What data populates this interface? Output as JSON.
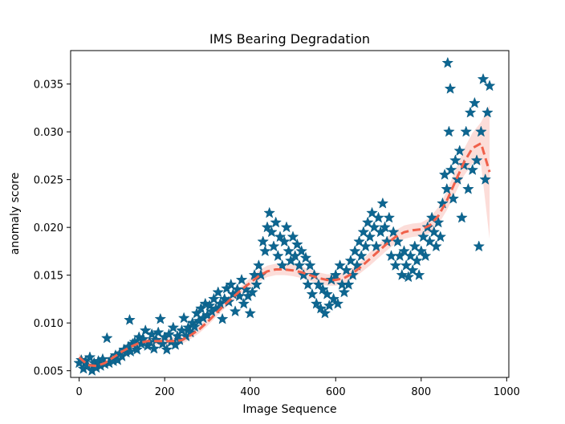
{
  "chart_data": {
    "type": "scatter",
    "title": "IMS Bearing Degradation",
    "xlabel": "Image Sequence",
    "ylabel": "anomaly score",
    "xlim": [
      -20,
      1005
    ],
    "ylim": [
      0.0043,
      0.0385
    ],
    "grid": false,
    "legend": "none",
    "x_ticks": [
      0,
      200,
      400,
      600,
      800,
      1000
    ],
    "x_tick_labels": [
      "0",
      "200",
      "400",
      "600",
      "800",
      "1000"
    ],
    "y_ticks": [
      0.005,
      0.01,
      0.015,
      0.02,
      0.025,
      0.03,
      0.035
    ],
    "y_tick_labels": [
      "0.005",
      "0.010",
      "0.015",
      "0.020",
      "0.025",
      "0.030",
      "0.035"
    ],
    "colors": {
      "points": "#0d6691",
      "trend": "#f0604a",
      "band": "#fbd2cc"
    },
    "marker": "star",
    "series": [
      {
        "kind": "scatter",
        "points": [
          [
            0,
            0.0058
          ],
          [
            5,
            0.0061
          ],
          [
            10,
            0.0052
          ],
          [
            15,
            0.006
          ],
          [
            20,
            0.0055
          ],
          [
            25,
            0.0064
          ],
          [
            30,
            0.005
          ],
          [
            35,
            0.0058
          ],
          [
            40,
            0.0053
          ],
          [
            45,
            0.006
          ],
          [
            50,
            0.0055
          ],
          [
            55,
            0.0062
          ],
          [
            60,
            0.0057
          ],
          [
            65,
            0.0084
          ],
          [
            70,
            0.0058
          ],
          [
            75,
            0.0062
          ],
          [
            80,
            0.006
          ],
          [
            85,
            0.0066
          ],
          [
            90,
            0.0061
          ],
          [
            95,
            0.0068
          ],
          [
            100,
            0.0065
          ],
          [
            105,
            0.0072
          ],
          [
            110,
            0.0069
          ],
          [
            115,
            0.0075
          ],
          [
            118,
            0.0103
          ],
          [
            120,
            0.007
          ],
          [
            125,
            0.0078
          ],
          [
            130,
            0.008
          ],
          [
            135,
            0.0072
          ],
          [
            140,
            0.0085
          ],
          [
            145,
            0.0078
          ],
          [
            150,
            0.0083
          ],
          [
            155,
            0.0092
          ],
          [
            160,
            0.0076
          ],
          [
            165,
            0.008
          ],
          [
            170,
            0.0088
          ],
          [
            175,
            0.0073
          ],
          [
            180,
            0.0082
          ],
          [
            185,
            0.009
          ],
          [
            190,
            0.0104
          ],
          [
            195,
            0.0078
          ],
          [
            200,
            0.0085
          ],
          [
            205,
            0.0072
          ],
          [
            210,
            0.0088
          ],
          [
            215,
            0.008
          ],
          [
            220,
            0.0095
          ],
          [
            225,
            0.0077
          ],
          [
            230,
            0.0086
          ],
          [
            235,
            0.0082
          ],
          [
            240,
            0.0092
          ],
          [
            245,
            0.0105
          ],
          [
            250,
            0.0086
          ],
          [
            255,
            0.0095
          ],
          [
            260,
            0.009
          ],
          [
            265,
            0.01
          ],
          [
            270,
            0.0096
          ],
          [
            275,
            0.011
          ],
          [
            280,
            0.0102
          ],
          [
            285,
            0.0115
          ],
          [
            290,
            0.0105
          ],
          [
            295,
            0.012
          ],
          [
            300,
            0.0108
          ],
          [
            305,
            0.0118
          ],
          [
            310,
            0.0112
          ],
          [
            315,
            0.0125
          ],
          [
            320,
            0.0115
          ],
          [
            325,
            0.0132
          ],
          [
            330,
            0.012
          ],
          [
            335,
            0.0104
          ],
          [
            340,
            0.0125
          ],
          [
            345,
            0.0136
          ],
          [
            350,
            0.0122
          ],
          [
            355,
            0.014
          ],
          [
            360,
            0.013
          ],
          [
            365,
            0.0112
          ],
          [
            370,
            0.0135
          ],
          [
            375,
            0.0128
          ],
          [
            380,
            0.0145
          ],
          [
            385,
            0.012
          ],
          [
            390,
            0.0135
          ],
          [
            395,
            0.0128
          ],
          [
            400,
            0.011
          ],
          [
            405,
            0.0132
          ],
          [
            410,
            0.015
          ],
          [
            415,
            0.014
          ],
          [
            420,
            0.016
          ],
          [
            425,
            0.015
          ],
          [
            430,
            0.0185
          ],
          [
            435,
            0.0175
          ],
          [
            440,
            0.02
          ],
          [
            445,
            0.0215
          ],
          [
            450,
            0.0195
          ],
          [
            455,
            0.018
          ],
          [
            460,
            0.0205
          ],
          [
            465,
            0.017
          ],
          [
            470,
            0.019
          ],
          [
            475,
            0.016
          ],
          [
            480,
            0.0185
          ],
          [
            485,
            0.02
          ],
          [
            490,
            0.0175
          ],
          [
            495,
            0.0165
          ],
          [
            500,
            0.019
          ],
          [
            505,
            0.017
          ],
          [
            510,
            0.0182
          ],
          [
            515,
            0.016
          ],
          [
            520,
            0.0175
          ],
          [
            525,
            0.015
          ],
          [
            530,
            0.0168
          ],
          [
            535,
            0.014
          ],
          [
            540,
            0.016
          ],
          [
            545,
            0.013
          ],
          [
            550,
            0.015
          ],
          [
            555,
            0.012
          ],
          [
            560,
            0.014
          ],
          [
            565,
            0.0115
          ],
          [
            570,
            0.0135
          ],
          [
            575,
            0.011
          ],
          [
            580,
            0.013
          ],
          [
            585,
            0.0118
          ],
          [
            590,
            0.0145
          ],
          [
            595,
            0.0125
          ],
          [
            600,
            0.015
          ],
          [
            605,
            0.012
          ],
          [
            610,
            0.016
          ],
          [
            615,
            0.014
          ],
          [
            620,
            0.0132
          ],
          [
            625,
            0.0155
          ],
          [
            630,
            0.014
          ],
          [
            635,
            0.0165
          ],
          [
            640,
            0.015
          ],
          [
            645,
            0.0175
          ],
          [
            650,
            0.016
          ],
          [
            655,
            0.0185
          ],
          [
            660,
            0.017
          ],
          [
            665,
            0.0195
          ],
          [
            670,
            0.018
          ],
          [
            675,
            0.0205
          ],
          [
            680,
            0.019
          ],
          [
            685,
            0.0215
          ],
          [
            690,
            0.02
          ],
          [
            695,
            0.018
          ],
          [
            700,
            0.021
          ],
          [
            705,
            0.0195
          ],
          [
            710,
            0.0225
          ],
          [
            715,
            0.02
          ],
          [
            720,
            0.0185
          ],
          [
            725,
            0.021
          ],
          [
            730,
            0.017
          ],
          [
            735,
            0.0195
          ],
          [
            740,
            0.016
          ],
          [
            745,
            0.0185
          ],
          [
            750,
            0.017
          ],
          [
            755,
            0.015
          ],
          [
            760,
            0.0175
          ],
          [
            765,
            0.016
          ],
          [
            770,
            0.0148
          ],
          [
            775,
            0.017
          ],
          [
            780,
            0.0155
          ],
          [
            785,
            0.018
          ],
          [
            790,
            0.0165
          ],
          [
            795,
            0.015
          ],
          [
            800,
            0.0175
          ],
          [
            805,
            0.019
          ],
          [
            810,
            0.017
          ],
          [
            815,
            0.02
          ],
          [
            820,
            0.0185
          ],
          [
            825,
            0.021
          ],
          [
            830,
            0.0195
          ],
          [
            835,
            0.018
          ],
          [
            840,
            0.0205
          ],
          [
            845,
            0.019
          ],
          [
            850,
            0.0225
          ],
          [
            855,
            0.0255
          ],
          [
            860,
            0.024
          ],
          [
            862,
            0.0372
          ],
          [
            865,
            0.03
          ],
          [
            868,
            0.0345
          ],
          [
            870,
            0.026
          ],
          [
            875,
            0.023
          ],
          [
            880,
            0.027
          ],
          [
            885,
            0.025
          ],
          [
            890,
            0.028
          ],
          [
            895,
            0.021
          ],
          [
            900,
            0.0265
          ],
          [
            905,
            0.03
          ],
          [
            910,
            0.024
          ],
          [
            915,
            0.032
          ],
          [
            920,
            0.026
          ],
          [
            925,
            0.033
          ],
          [
            930,
            0.027
          ],
          [
            935,
            0.018
          ],
          [
            940,
            0.03
          ],
          [
            945,
            0.0355
          ],
          [
            950,
            0.025
          ],
          [
            955,
            0.032
          ],
          [
            960,
            0.0348
          ]
        ]
      },
      {
        "kind": "trend",
        "x": [
          0,
          20,
          40,
          60,
          80,
          100,
          120,
          140,
          160,
          180,
          200,
          220,
          240,
          260,
          280,
          300,
          320,
          340,
          360,
          380,
          400,
          420,
          440,
          460,
          480,
          500,
          520,
          540,
          560,
          580,
          600,
          620,
          640,
          660,
          680,
          700,
          720,
          740,
          760,
          780,
          800,
          820,
          840,
          860,
          880,
          900,
          920,
          940,
          960
        ],
        "y": [
          0.0064,
          0.0056,
          0.0055,
          0.0058,
          0.0064,
          0.007,
          0.0075,
          0.0079,
          0.0081,
          0.0081,
          0.0081,
          0.0081,
          0.0082,
          0.0087,
          0.0093,
          0.0101,
          0.011,
          0.0119,
          0.0127,
          0.0135,
          0.0142,
          0.0149,
          0.0154,
          0.0156,
          0.0156,
          0.0155,
          0.0153,
          0.015,
          0.0147,
          0.0145,
          0.0145,
          0.0147,
          0.0152,
          0.0159,
          0.0167,
          0.0175,
          0.0183,
          0.019,
          0.0195,
          0.0197,
          0.0198,
          0.0202,
          0.0212,
          0.0228,
          0.0248,
          0.0268,
          0.0283,
          0.0288,
          0.0258
        ],
        "band": [
          0.0004,
          0.0004,
          0.0004,
          0.0004,
          0.0004,
          0.0004,
          0.0004,
          0.0004,
          0.0004,
          0.0004,
          0.0004,
          0.0004,
          0.0004,
          0.0004,
          0.0004,
          0.0004,
          0.0004,
          0.0004,
          0.0004,
          0.0004,
          0.0005,
          0.0006,
          0.0006,
          0.0006,
          0.0006,
          0.0006,
          0.0006,
          0.0006,
          0.0006,
          0.0006,
          0.0006,
          0.0006,
          0.0006,
          0.0006,
          0.0007,
          0.0007,
          0.0007,
          0.0007,
          0.0007,
          0.0007,
          0.0007,
          0.0008,
          0.0009,
          0.001,
          0.0012,
          0.0014,
          0.0016,
          0.0022,
          0.007
        ]
      }
    ]
  }
}
